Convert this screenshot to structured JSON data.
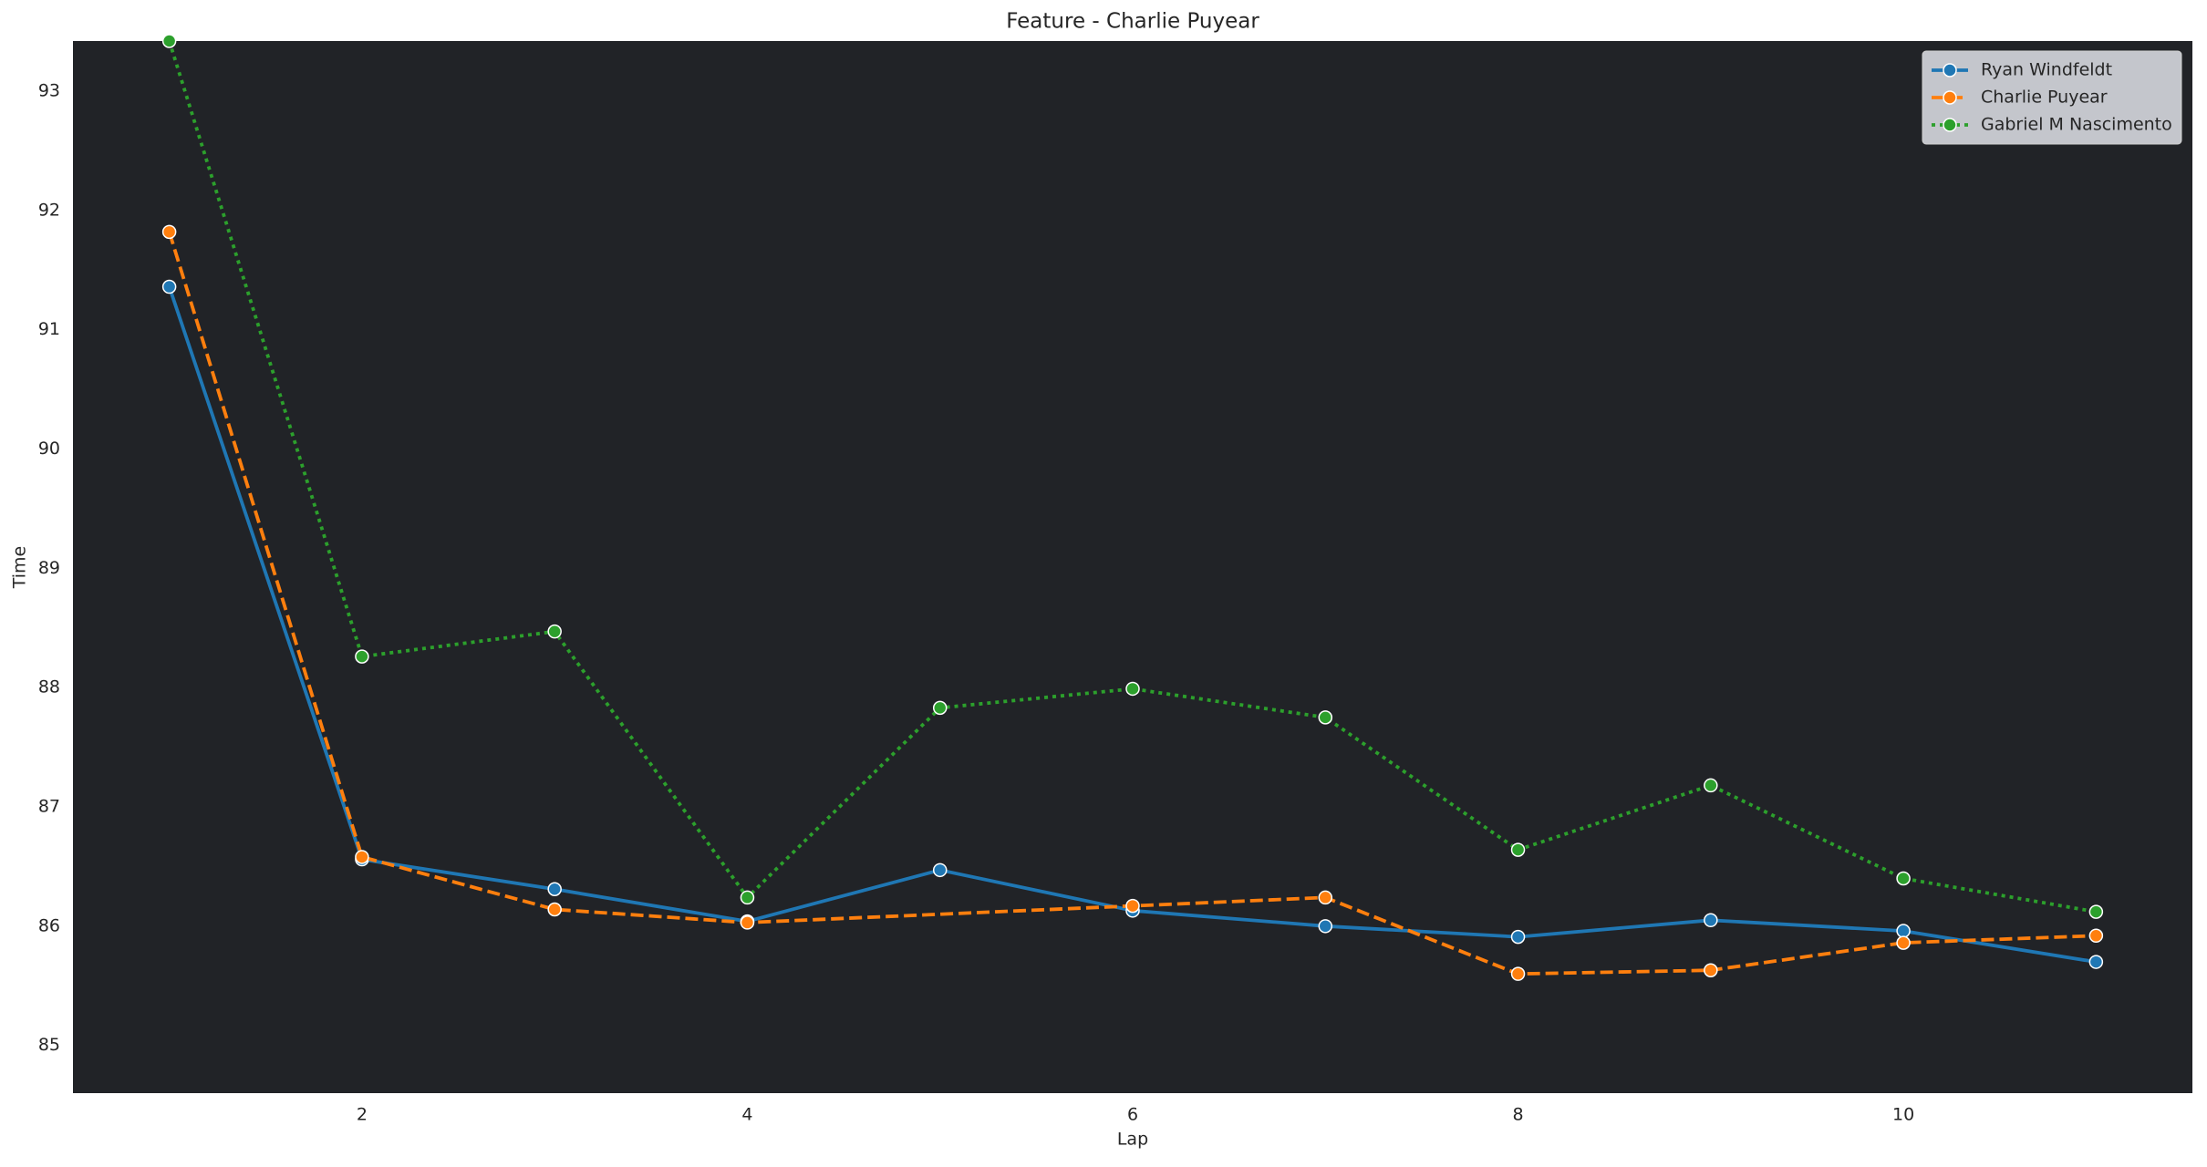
{
  "chart_data": {
    "type": "line",
    "title": "Feature - Charlie Puyear",
    "x_label": "Lap",
    "y_label": "Time",
    "xlim": [
      0.5,
      11.5
    ],
    "xticks": [
      2,
      4,
      6,
      8,
      10
    ],
    "ylim": [
      84.6,
      93.42
    ],
    "yticks": [
      85,
      86,
      87,
      88,
      89,
      90,
      91,
      92,
      93
    ],
    "legend": "upper-right",
    "series": [
      {
        "name": "Ryan Windfeldt",
        "color": "#1f77b4",
        "linestyle": "solid",
        "x": [
          1,
          2,
          3,
          4,
          5,
          6,
          7,
          8,
          9,
          10,
          11
        ],
        "values": [
          91.36,
          86.56,
          86.31,
          86.04,
          86.47,
          86.13,
          86.0,
          85.91,
          86.05,
          85.96,
          85.7
        ]
      },
      {
        "name": "Charlie Puyear",
        "color": "#ff7f0e",
        "linestyle": "dashed",
        "x": [
          1,
          2,
          3,
          4,
          6,
          7,
          8,
          9,
          10,
          11
        ],
        "values": [
          91.82,
          86.58,
          86.14,
          86.03,
          86.17,
          86.24,
          85.6,
          85.63,
          85.86,
          85.92
        ]
      },
      {
        "name": "Gabriel M Nascimento",
        "color": "#2ca02c",
        "linestyle": "dotted",
        "x": [
          1,
          2,
          3,
          4,
          5,
          6,
          7,
          8,
          9,
          10,
          11
        ],
        "values": [
          93.42,
          88.26,
          88.47,
          86.24,
          87.83,
          87.99,
          87.75,
          86.64,
          87.18,
          86.4,
          86.12
        ]
      }
    ]
  }
}
